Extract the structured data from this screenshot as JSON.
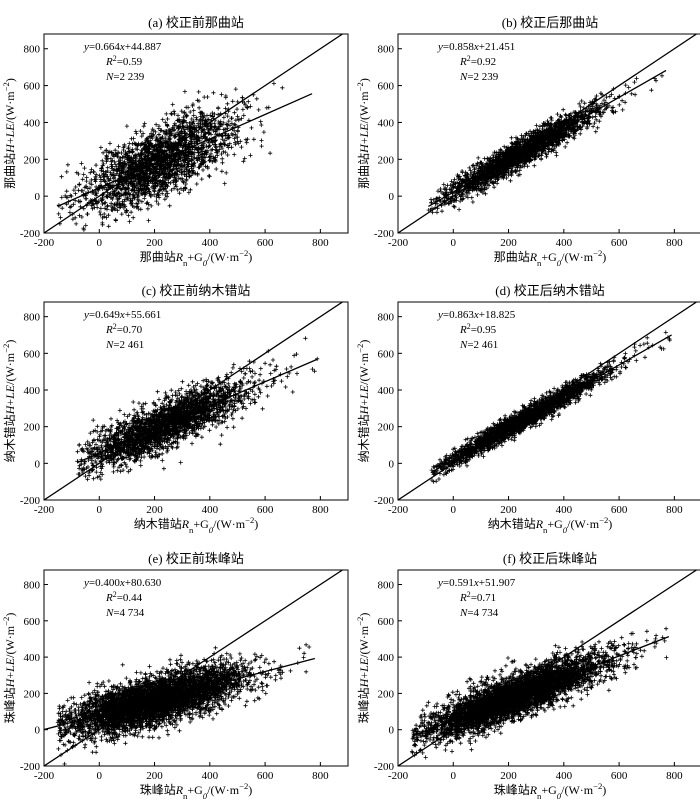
{
  "chart_data": [
    {
      "type": "scatter",
      "title": "(a) 校正前那曲站",
      "xlabel": "那曲站Rn+G0/(W·m⁻²)",
      "ylabel": "那曲站H+LE/(W·m⁻²)",
      "xlim": [
        -200,
        900
      ],
      "ylim": [
        -200,
        880
      ],
      "xticks": [
        -200,
        0,
        200,
        400,
        600,
        800
      ],
      "yticks": [
        -200,
        0,
        200,
        400,
        600,
        800
      ],
      "equation": "y=0.664x+44.887",
      "r2": "R²=0.59",
      "n": "N=2 239",
      "fit": {
        "slope": 0.664,
        "intercept": 44.887,
        "x_range": [
          -150,
          770
        ]
      },
      "identity_line": true,
      "cloud": {
        "count": 2239,
        "x_range": [
          -150,
          770
        ],
        "center_x": 220,
        "spread_x": 140,
        "noise_y": 95,
        "seed": 11
      }
    },
    {
      "type": "scatter",
      "title": "(b) 校正后那曲站",
      "xlabel": "那曲站Rn+G0/(W·m⁻²)",
      "ylabel": "那曲站H+LE/(W·m⁻²)",
      "xlim": [
        -200,
        900
      ],
      "ylim": [
        -200,
        880
      ],
      "xticks": [
        -200,
        0,
        200,
        400,
        600,
        800
      ],
      "yticks": [
        -200,
        0,
        200,
        400,
        600,
        800
      ],
      "equation": "y=0.858x+21.451",
      "r2": "R²=0.92",
      "n": "N=2 239",
      "fit": {
        "slope": 0.858,
        "intercept": 21.451,
        "x_range": [
          -90,
          770
        ]
      },
      "identity_line": true,
      "cloud": {
        "count": 2239,
        "x_range": [
          -90,
          770
        ],
        "center_x": 240,
        "spread_x": 140,
        "noise_y": 38,
        "seed": 23
      }
    },
    {
      "type": "scatter",
      "title": "(c) 校正前纳木错站",
      "xlabel": "纳木错站Rn+G0/(W·m⁻²)",
      "ylabel": "纳木错站H+LE/(W·m⁻²)",
      "xlim": [
        -200,
        900
      ],
      "ylim": [
        -200,
        880
      ],
      "xticks": [
        -200,
        0,
        200,
        400,
        600,
        800
      ],
      "yticks": [
        -200,
        0,
        200,
        400,
        600,
        800
      ],
      "equation": "y=0.649x+55.661",
      "r2": "R²=0.70",
      "n": "N=2 461",
      "fit": {
        "slope": 0.649,
        "intercept": 55.661,
        "x_range": [
          -80,
          790
        ]
      },
      "identity_line": true,
      "cloud": {
        "count": 2461,
        "x_range": [
          -80,
          790
        ],
        "center_x": 240,
        "spread_x": 150,
        "noise_y": 65,
        "seed": 37
      }
    },
    {
      "type": "scatter",
      "title": "(d) 校正后纳木错站",
      "xlabel": "纳木错站Rn+G0/(W·m⁻²)",
      "ylabel": "纳木错站H+LE/(W·m⁻²)",
      "xlim": [
        -200,
        900
      ],
      "ylim": [
        -200,
        880
      ],
      "xticks": [
        -200,
        0,
        200,
        400,
        600,
        800
      ],
      "yticks": [
        -200,
        0,
        200,
        400,
        600,
        800
      ],
      "equation": "y=0.863x+18.825",
      "r2": "R²=0.95",
      "n": "N=2 461",
      "fit": {
        "slope": 0.863,
        "intercept": 18.825,
        "x_range": [
          -80,
          790
        ]
      },
      "identity_line": true,
      "cloud": {
        "count": 2461,
        "x_range": [
          -80,
          790
        ],
        "center_x": 260,
        "spread_x": 150,
        "noise_y": 28,
        "seed": 41
      }
    },
    {
      "type": "scatter",
      "title": "(e) 校正前珠峰站",
      "xlabel": "珠峰站Rn+G0/(W·m⁻²)",
      "ylabel": "珠峰站H+LE/(W·m⁻²)",
      "xlim": [
        -200,
        900
      ],
      "ylim": [
        -200,
        880
      ],
      "xticks": [
        -200,
        0,
        200,
        400,
        600,
        800
      ],
      "yticks": [
        -200,
        0,
        200,
        400,
        600,
        800
      ],
      "equation": "y=0.400x+80.630",
      "r2": "R²=0.44",
      "n": "N=4 734",
      "fit": {
        "slope": 0.4,
        "intercept": 80.63,
        "x_range": [
          -200,
          780
        ]
      },
      "identity_line": true,
      "cloud": {
        "count": 4734,
        "x_range": [
          -150,
          780
        ],
        "center_x": 200,
        "spread_x": 160,
        "noise_y": 62,
        "seed": 53
      }
    },
    {
      "type": "scatter",
      "title": "(f) 校正后珠峰站",
      "xlabel": "珠峰站Rn+G0/(W·m⁻²)",
      "ylabel": "珠峰站H+LE/(W·m⁻²)",
      "xlim": [
        -200,
        900
      ],
      "ylim": [
        -200,
        880
      ],
      "xticks": [
        -200,
        0,
        200,
        400,
        600,
        800
      ],
      "yticks": [
        -200,
        0,
        200,
        400,
        600,
        800
      ],
      "equation": "y=0.591x+51.907",
      "r2": "R²=0.71",
      "n": "N=4 734",
      "fit": {
        "slope": 0.591,
        "intercept": 51.907,
        "x_range": [
          -150,
          780
        ]
      },
      "identity_line": true,
      "cloud": {
        "count": 4734,
        "x_range": [
          -150,
          780
        ],
        "center_x": 220,
        "spread_x": 160,
        "noise_y": 55,
        "seed": 67
      }
    }
  ]
}
